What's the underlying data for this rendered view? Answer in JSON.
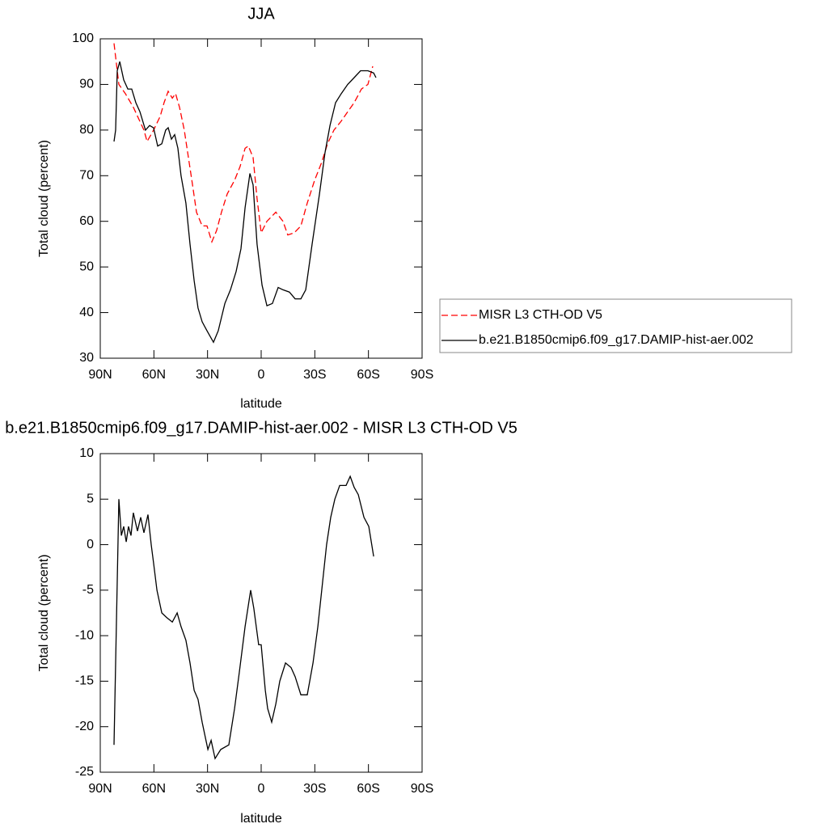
{
  "chart_data": [
    {
      "type": "line",
      "title": "JJA",
      "xlabel": "latitude",
      "ylabel": "Total cloud (percent)",
      "xlim": [
        90,
        -90
      ],
      "xticks": [
        {
          "value": 90,
          "label": "90N"
        },
        {
          "value": 60,
          "label": "60N"
        },
        {
          "value": 30,
          "label": "30N"
        },
        0,
        {
          "value": -30,
          "label": "30S"
        },
        {
          "value": -60,
          "label": "60S"
        },
        {
          "value": -90,
          "label": "90S"
        }
      ],
      "ylim": [
        30,
        100
      ],
      "yticks": [
        30,
        40,
        50,
        60,
        70,
        80,
        90,
        100
      ],
      "legend": "right",
      "series": [
        {
          "name": "MISR L3 CTH-OD V5",
          "color": "#ff0000",
          "dash": "dashed",
          "x": [
            82.3,
            79.6,
            76.0,
            71.5,
            65.6,
            63.8,
            60.2,
            56.5,
            54.3,
            52.0,
            49.7,
            47.9,
            45.7,
            43.0,
            40.7,
            38.4,
            36.2,
            33.0,
            30.3,
            27.6,
            24.9,
            22.2,
            19.0,
            14.9,
            11.8,
            9.0,
            7.2,
            4.5,
            2.3,
            0.0,
            -3.2,
            -8.2,
            -12.2,
            -14.9,
            -18.6,
            -22.2,
            -25.8,
            -29.9,
            -33.9,
            -37.1,
            -40.7,
            -44.8,
            -48.4,
            -52.0,
            -56.1,
            -59.7,
            -62.4
          ],
          "values": [
            99,
            90,
            88,
            85,
            80,
            77.5,
            80,
            83,
            86,
            88.5,
            87,
            88,
            85,
            80,
            74,
            68,
            62,
            59,
            59,
            55.5,
            58,
            62,
            66,
            69,
            72,
            76,
            76.5,
            74,
            65,
            57.5,
            60,
            62,
            60,
            57,
            57.5,
            59,
            64,
            69,
            73,
            77,
            80,
            82,
            84,
            86,
            89,
            90,
            94
          ]
        },
        {
          "name": "b.e21.B1850cmip6.f09_g17.DAMIP-hist-aer.002",
          "color": "#000000",
          "dash": "solid",
          "x": [
            82.3,
            81.4,
            80.5,
            79.1,
            76.9,
            74.6,
            72.4,
            70.1,
            67.8,
            64.7,
            62.4,
            60.2,
            57.9,
            55.6,
            53.4,
            52.0,
            50.2,
            48.4,
            46.6,
            44.8,
            42.1,
            39.8,
            37.5,
            35.3,
            33.0,
            30.3,
            26.7,
            24.0,
            20.3,
            17.2,
            14.0,
            11.3,
            9.0,
            6.3,
            4.5,
            2.3,
            -0.5,
            -3.2,
            -6.3,
            -9.5,
            -12.2,
            -15.8,
            -19.0,
            -22.2,
            -24.9,
            -28.5,
            -32.6,
            -35.7,
            -38.5,
            -41.6,
            -44.8,
            -48.4,
            -52.0,
            -55.6,
            -59.7,
            -62.9,
            -64.2
          ],
          "values": [
            77.5,
            80,
            93,
            95,
            91,
            89,
            89,
            86,
            84,
            80,
            81,
            80.5,
            76.5,
            77,
            80,
            80.5,
            78,
            79,
            76,
            70,
            64,
            55,
            47,
            41,
            38,
            36,
            33.5,
            36,
            42,
            45,
            49,
            54,
            63,
            70.5,
            68,
            55,
            46,
            41.5,
            42,
            45.5,
            45,
            44.5,
            43,
            43,
            45,
            55,
            66,
            75,
            81,
            86,
            88,
            90,
            91.5,
            93,
            93,
            92.5,
            91.5
          ]
        }
      ]
    },
    {
      "type": "line",
      "title": "b.e21.B1850cmip6.f09_g17.DAMIP-hist-aer.002 - MISR L3 CTH-OD V5",
      "xlabel": "latitude",
      "ylabel": "Total cloud (percent)",
      "xlim": [
        90,
        -90
      ],
      "xticks": [
        {
          "value": 90,
          "label": "90N"
        },
        {
          "value": 60,
          "label": "60N"
        },
        {
          "value": 30,
          "label": "30N"
        },
        0,
        {
          "value": -30,
          "label": "30S"
        },
        {
          "value": -60,
          "label": "60S"
        },
        {
          "value": -90,
          "label": "90S"
        }
      ],
      "ylim": [
        -25,
        10
      ],
      "yticks": [
        -25,
        -20,
        -15,
        -10,
        -5,
        0,
        5,
        10
      ],
      "series": [
        {
          "color": "#000000",
          "dash": "solid",
          "x": [
            82.3,
            81.4,
            79.6,
            78.2,
            76.9,
            75.5,
            74.2,
            72.8,
            71.5,
            69.2,
            67.4,
            65.6,
            63.3,
            61.5,
            60.2,
            58.3,
            55.6,
            52.9,
            49.7,
            47.0,
            44.8,
            42.1,
            39.8,
            37.5,
            35.3,
            33.0,
            29.8,
            28.0,
            25.8,
            22.6,
            18.1,
            14.9,
            12.2,
            9.0,
            5.9,
            4.1,
            1.4,
            0.0,
            -2.3,
            -3.6,
            -5.9,
            -8.2,
            -10.4,
            -13.6,
            -16.7,
            -19.0,
            -22.2,
            -25.8,
            -29.0,
            -31.7,
            -34.4,
            -36.6,
            -38.9,
            -41.2,
            -43.9,
            -47.5,
            -49.8,
            -52.0,
            -54.3,
            -57.5,
            -60.2,
            -62.9
          ],
          "values": [
            -22,
            -13,
            5,
            1,
            2,
            0.3,
            2,
            1,
            3.5,
            1.5,
            3,
            1.3,
            3.3,
            0,
            -2,
            -5,
            -7.5,
            -8,
            -8.5,
            -7.5,
            -9,
            -10.5,
            -13,
            -16,
            -17,
            -19.5,
            -22.5,
            -21.5,
            -23.5,
            -22.5,
            -22,
            -18,
            -14,
            -9,
            -5,
            -7,
            -11,
            -11,
            -16,
            -18,
            -19.5,
            -17.5,
            -15,
            -13,
            -13.5,
            -14.5,
            -16.5,
            -16.5,
            -13,
            -9,
            -4,
            0,
            3,
            5,
            6.5,
            6.5,
            7.5,
            6.3,
            5.5,
            3,
            2,
            -1.3
          ]
        }
      ]
    }
  ]
}
